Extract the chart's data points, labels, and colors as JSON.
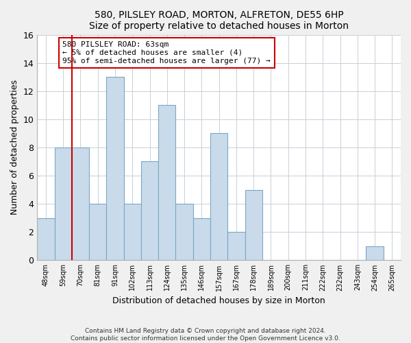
{
  "title1": "580, PILSLEY ROAD, MORTON, ALFRETON, DE55 6HP",
  "title2": "Size of property relative to detached houses in Morton",
  "xlabel": "Distribution of detached houses by size in Morton",
  "ylabel": "Number of detached properties",
  "categories": [
    "48sqm",
    "59sqm",
    "70sqm",
    "81sqm",
    "91sqm",
    "102sqm",
    "113sqm",
    "124sqm",
    "135sqm",
    "146sqm",
    "157sqm",
    "167sqm",
    "178sqm",
    "189sqm",
    "200sqm",
    "211sqm",
    "222sqm",
    "232sqm",
    "243sqm",
    "254sqm",
    "265sqm"
  ],
  "values": [
    3,
    8,
    8,
    4,
    13,
    4,
    7,
    11,
    4,
    3,
    9,
    2,
    5,
    0,
    0,
    0,
    0,
    0,
    0,
    1,
    0
  ],
  "bar_color": "#c9daea",
  "bar_edge_color": "#7ba7c4",
  "ylim": [
    0,
    16
  ],
  "yticks": [
    0,
    2,
    4,
    6,
    8,
    10,
    12,
    14,
    16
  ],
  "marker_color": "#cc0000",
  "annotation_title": "580 PILSLEY ROAD: 63sqm",
  "annotation_line1": "← 5% of detached houses are smaller (4)",
  "annotation_line2": "95% of semi-detached houses are larger (77) →",
  "annotation_box_color": "#ffffff",
  "annotation_box_edge": "#cc0000",
  "footer1": "Contains HM Land Registry data © Crown copyright and database right 2024.",
  "footer2": "Contains public sector information licensed under the Open Government Licence v3.0.",
  "background_color": "#f0f0f0",
  "plot_background": "#ffffff",
  "grid_color": "#c8d0d8"
}
